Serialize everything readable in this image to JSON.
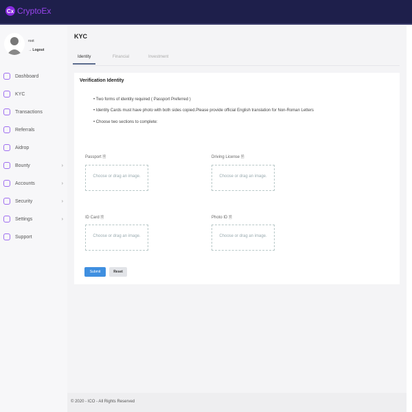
{
  "header": {
    "logo_mark": "Cx",
    "logo_text": "CryptoEx"
  },
  "user": {
    "name": "root",
    "logout": "Logout"
  },
  "sidebar": {
    "items": [
      {
        "label": "Dashboard",
        "icon": "dashboard-icon",
        "chevron": false
      },
      {
        "label": "KYC",
        "icon": "document-icon",
        "chevron": false
      },
      {
        "label": "Transactions",
        "icon": "exchange-icon",
        "chevron": false
      },
      {
        "label": "Referrals",
        "icon": "infinity-icon",
        "chevron": false
      },
      {
        "label": "Aidrop",
        "icon": "airdrop-icon",
        "chevron": false
      },
      {
        "label": "Bounty",
        "icon": "bounty-icon",
        "chevron": true
      },
      {
        "label": "Accounts",
        "icon": "accounts-icon",
        "chevron": true
      },
      {
        "label": "Security",
        "icon": "shield-icon",
        "chevron": true
      },
      {
        "label": "Settings",
        "icon": "gear-icon",
        "chevron": true
      },
      {
        "label": "Support",
        "icon": "support-icon",
        "chevron": false
      }
    ]
  },
  "page": {
    "title": "KYC",
    "tabs": [
      "Identity",
      "Financial",
      "Investment"
    ],
    "active_tab": "Identity"
  },
  "card": {
    "title": "Verification Identity",
    "bullets": [
      "Two forms of identity required ( Passport Preferred )",
      "Identity Cards must have photo with both sides copied.Please provide official English translation for Non-Roman Letters",
      "Choose two sections to complete:"
    ],
    "uploads": [
      {
        "label": "Passport",
        "hint": "Choose or drag an image."
      },
      {
        "label": "Driving License",
        "hint": "Choose or drag an image."
      },
      {
        "label": "ID Card",
        "hint": "Choose or drag an image."
      },
      {
        "label": "Photo ID",
        "hint": "Choose or drag an image."
      }
    ],
    "submit": "Submit",
    "reset": "Reset"
  },
  "footer": "© 2020 - ICO - All Rights Reserved",
  "colors": {
    "header": "#1e1f4b",
    "accent": "#9b45f0",
    "submit": "#3f8fe0"
  }
}
